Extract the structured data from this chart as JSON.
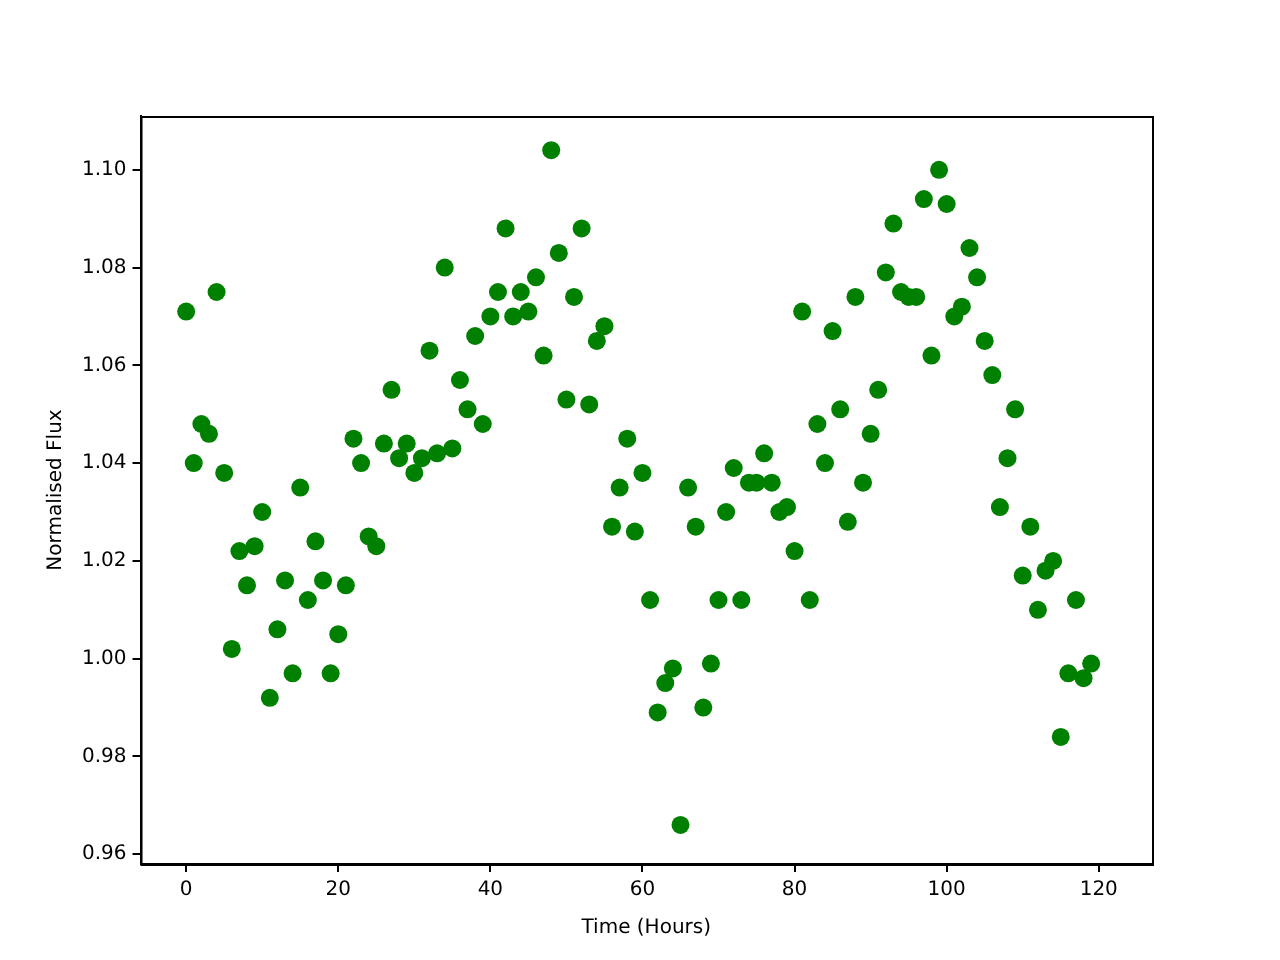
{
  "chart_data": {
    "type": "scatter",
    "xlabel": "Time (Hours)",
    "ylabel": "Normalised Flux",
    "x": [
      0,
      1,
      2,
      3,
      4,
      5,
      6,
      7,
      8,
      9,
      10,
      11,
      12,
      13,
      14,
      15,
      16,
      17,
      18,
      19,
      20,
      21,
      22,
      23,
      24,
      25,
      26,
      27,
      28,
      29,
      30,
      31,
      32,
      33,
      34,
      35,
      36,
      37,
      38,
      39,
      40,
      41,
      42,
      43,
      44,
      45,
      46,
      47,
      48,
      49,
      50,
      51,
      52,
      53,
      54,
      55,
      56,
      57,
      58,
      59,
      60,
      61,
      62,
      63,
      64,
      65,
      66,
      67,
      68,
      69,
      70,
      71,
      72,
      73,
      74,
      75,
      76,
      77,
      78,
      79,
      80,
      81,
      82,
      83,
      84,
      85,
      86,
      87,
      88,
      89,
      90,
      91,
      92,
      93,
      94,
      95,
      96,
      97,
      98,
      99,
      100,
      101,
      102,
      103,
      104,
      105,
      106,
      107,
      108,
      109,
      110,
      111,
      112,
      113,
      114,
      115,
      116,
      117,
      118,
      119
    ],
    "series": [
      {
        "color": "#008000",
        "values": [
          1.071,
          1.04,
          1.048,
          1.046,
          1.075,
          1.038,
          1.002,
          1.022,
          1.015,
          1.023,
          1.03,
          0.992,
          1.006,
          1.016,
          0.997,
          1.035,
          1.012,
          1.024,
          1.016,
          0.997,
          1.005,
          1.015,
          1.045,
          1.04,
          1.025,
          1.023,
          1.044,
          1.055,
          1.041,
          1.044,
          1.038,
          1.041,
          1.063,
          1.042,
          1.08,
          1.043,
          1.057,
          1.051,
          1.066,
          1.048,
          1.07,
          1.075,
          1.088,
          1.07,
          1.075,
          1.071,
          1.078,
          1.062,
          1.104,
          1.083,
          1.053,
          1.074,
          1.088,
          1.052,
          1.065,
          1.068,
          1.027,
          1.035,
          1.045,
          1.026,
          1.038,
          1.012,
          0.989,
          0.995,
          0.998,
          0.966,
          1.035,
          1.027,
          0.99,
          0.999,
          1.012,
          1.03,
          1.039,
          1.012,
          1.036,
          1.036,
          1.042,
          1.036,
          1.03,
          1.031,
          1.022,
          1.071,
          1.012,
          1.048,
          1.04,
          1.067,
          1.051,
          1.028,
          1.074,
          1.036,
          1.046,
          1.055,
          1.079,
          1.089,
          1.075,
          1.074,
          1.074,
          1.094,
          1.062,
          1.1,
          1.093,
          1.07,
          1.072,
          1.084,
          1.078,
          1.065,
          1.058,
          1.031,
          1.041,
          1.051,
          1.017,
          1.027,
          1.01,
          1.018,
          1.02,
          0.984,
          0.997,
          1.012,
          0.996,
          0.999
        ]
      }
    ],
    "xlim": [
      -6,
      127
    ],
    "xticks": [
      0,
      20,
      40,
      60,
      80,
      100,
      120
    ],
    "ylim": [
      0.958,
      1.111
    ],
    "yticks": [
      0.96,
      0.98,
      {
        "value": 1.0,
        "label": "1.00"
      },
      1.02,
      1.04,
      1.06,
      1.08,
      {
        "value": 1.1,
        "label": "1.10"
      }
    ],
    "grid": false,
    "legend": false,
    "marker": "circle"
  }
}
